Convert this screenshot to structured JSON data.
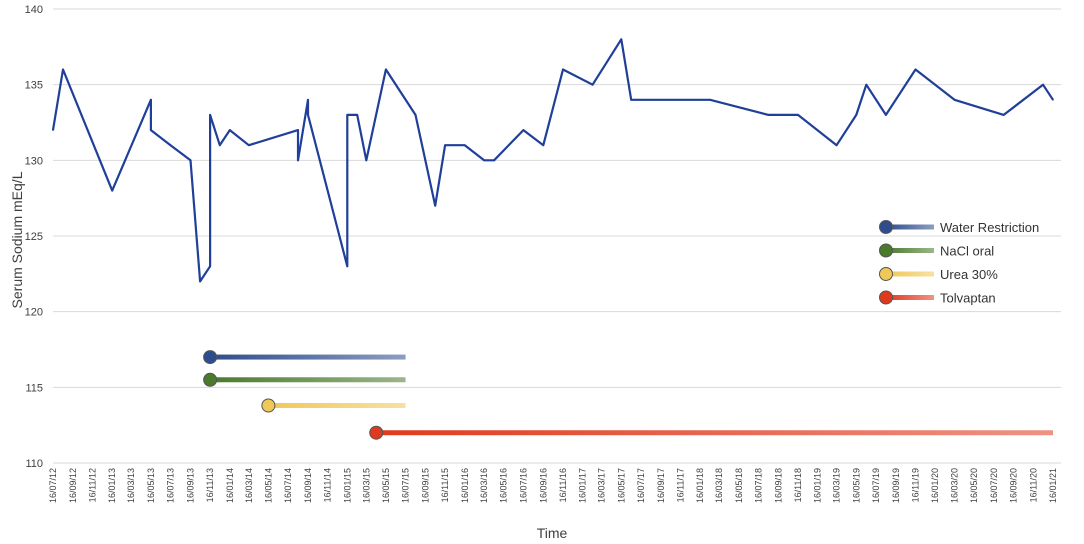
{
  "chart_data": {
    "type": "line",
    "ylabel": "Serum Sodium mEq/L",
    "xlabel": "Time",
    "ylim": [
      110,
      140
    ],
    "yticks": [
      110,
      115,
      120,
      125,
      130,
      135,
      140
    ],
    "ytick_labels": [
      "110",
      "115",
      "120",
      "125",
      "130",
      "135",
      "140"
    ],
    "grid": true,
    "xticks": [
      "16/07/12",
      "16/09/12",
      "16/11/12",
      "16/01/13",
      "16/03/13",
      "16/05/13",
      "16/07/13",
      "16/09/13",
      "16/11/13",
      "16/01/14",
      "16/03/14",
      "16/05/14",
      "16/07/14",
      "16/09/14",
      "16/11/14",
      "16/01/15",
      "16/03/15",
      "16/05/15",
      "16/07/15",
      "16/09/15",
      "16/11/15",
      "16/01/16",
      "16/03/16",
      "16/05/16",
      "16/07/16",
      "16/09/16",
      "16/11/16",
      "16/01/17",
      "16/03/17",
      "16/05/17",
      "16/07/17",
      "16/09/17",
      "16/11/17",
      "16/01/18",
      "16/03/18",
      "16/05/18",
      "16/07/18",
      "16/09/18",
      "16/11/18",
      "16/01/19",
      "16/03/19",
      "16/05/19",
      "16/07/19",
      "16/09/19",
      "16/11/19",
      "16/01/20",
      "16/03/20",
      "16/05/20",
      "16/07/20",
      "16/09/20",
      "16/11/20",
      "16/01/21"
    ],
    "series": [
      {
        "color": "#1f3f99",
        "points": [
          [
            "16/07/12",
            132
          ],
          [
            "16/08/12",
            136
          ],
          [
            "16/01/13",
            128
          ],
          [
            "16/05/13",
            134
          ],
          [
            "16/05/13",
            132
          ],
          [
            "16/07/13",
            131
          ],
          [
            "16/09/13",
            130
          ],
          [
            "16/10/13",
            122
          ],
          [
            "16/11/13",
            123
          ],
          [
            "16/11/13",
            127
          ],
          [
            "16/11/13",
            133
          ],
          [
            "16/12/13",
            131
          ],
          [
            "16/01/14",
            132
          ],
          [
            "16/03/14",
            131
          ],
          [
            "16/08/14",
            132
          ],
          [
            "16/08/14",
            130
          ],
          [
            "16/09/14",
            134
          ],
          [
            "16/09/14",
            133
          ],
          [
            "16/01/15",
            123
          ],
          [
            "16/01/15",
            133
          ],
          [
            "16/02/15",
            133
          ],
          [
            "16/03/15",
            130
          ],
          [
            "16/05/15",
            136
          ],
          [
            "16/08/15",
            133
          ],
          [
            "16/10/15",
            127
          ],
          [
            "16/11/15",
            131
          ],
          [
            "16/01/16",
            131
          ],
          [
            "16/03/16",
            130
          ],
          [
            "16/04/16",
            130
          ],
          [
            "16/07/16",
            132
          ],
          [
            "16/09/16",
            131
          ],
          [
            "16/11/16",
            136
          ],
          [
            "16/02/17",
            135
          ],
          [
            "16/05/17",
            138
          ],
          [
            "16/06/17",
            134
          ],
          [
            "16/01/18",
            134
          ],
          [
            "16/02/18",
            134
          ],
          [
            "16/08/18",
            133
          ],
          [
            "16/11/18",
            133
          ],
          [
            "16/03/19",
            131
          ],
          [
            "16/05/19",
            133
          ],
          [
            "16/06/19",
            135
          ],
          [
            "16/08/19",
            133
          ],
          [
            "16/11/19",
            136
          ],
          [
            "16/03/20",
            134
          ],
          [
            "16/08/20",
            133
          ],
          [
            "16/12/20",
            135
          ],
          [
            "16/01/21",
            134
          ]
        ]
      }
    ],
    "legend": {
      "placement": "right",
      "entries": [
        {
          "label": "Water Restriction",
          "color": "#2e4d8e"
        },
        {
          "label": "NaCl oral",
          "color": "#4a7a2c"
        },
        {
          "label": "Urea 30%",
          "color": "#f0c858"
        },
        {
          "label": "Tolvaptan",
          "color": "#e03a1e"
        }
      ]
    },
    "treatment_bars": [
      {
        "label": "Water Restriction",
        "color": "#2e4d8e",
        "start": "16/11/13",
        "end": "16/07/15",
        "y": 117.0
      },
      {
        "label": "NaCl oral",
        "color": "#4a7a2c",
        "start": "16/11/13",
        "end": "16/07/15",
        "y": 115.5
      },
      {
        "label": "Urea 30%",
        "color": "#f0c858",
        "start": "16/05/14",
        "end": "16/07/15",
        "y": 113.8
      },
      {
        "label": "Tolvaptan",
        "color": "#e03a1e",
        "start": "16/04/15",
        "end": "16/01/21",
        "y": 112.0
      }
    ]
  }
}
